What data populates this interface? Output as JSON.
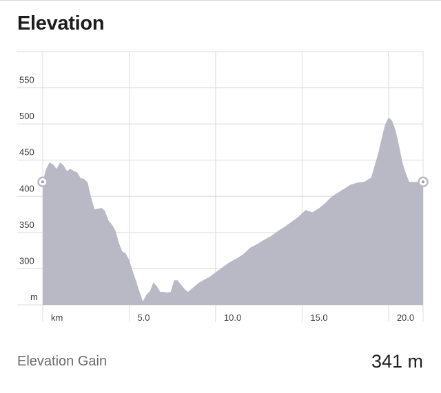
{
  "header": {
    "title": "Elevation"
  },
  "chart_data": {
    "type": "area",
    "title": "",
    "xlabel": "km",
    "ylabel": "m",
    "xlim": [
      0,
      22.0
    ],
    "ylim": [
      250,
      600
    ],
    "x_ticks": [
      {
        "value": 5.0,
        "label": "5.0"
      },
      {
        "value": 10.0,
        "label": "10.0"
      },
      {
        "value": 15.0,
        "label": "15.0"
      },
      {
        "value": 20.0,
        "label": "20.0"
      }
    ],
    "y_ticks": [
      {
        "value": 300,
        "label": "300"
      },
      {
        "value": 350,
        "label": "350"
      },
      {
        "value": 400,
        "label": "400"
      },
      {
        "value": 450,
        "label": "450"
      },
      {
        "value": 500,
        "label": "500"
      },
      {
        "value": 550,
        "label": "550"
      }
    ],
    "grid": true,
    "colors": {
      "fill": "#b9b9c6",
      "grid": "#dcdcdc",
      "axis_text": "#3a3a3a"
    },
    "markers": [
      {
        "x": 0.0,
        "y": 420
      },
      {
        "x": 22.0,
        "y": 420
      }
    ],
    "series": [
      {
        "x": [
          0.0,
          0.2,
          0.4,
          0.6,
          0.8,
          1.0,
          1.2,
          1.4,
          1.6,
          1.8,
          2.0,
          2.2,
          2.4,
          2.6,
          2.8,
          3.0,
          3.2,
          3.4,
          3.6,
          3.8,
          4.0,
          4.2,
          4.4,
          4.6,
          4.8,
          5.0,
          5.2,
          5.4,
          5.6,
          5.8,
          6.0,
          6.2,
          6.4,
          6.6,
          6.8,
          7.0,
          7.2,
          7.4,
          7.6,
          7.8,
          8.0,
          8.2,
          8.4,
          8.6,
          8.8,
          9.0,
          9.2,
          9.6,
          10.0,
          10.4,
          10.8,
          11.2,
          11.6,
          12.0,
          12.4,
          12.8,
          13.2,
          13.6,
          14.0,
          14.4,
          14.8,
          15.2,
          15.6,
          16.0,
          16.2,
          16.4,
          16.6,
          16.8,
          17.0,
          17.4,
          17.8,
          18.2,
          18.6,
          19.0,
          19.4,
          19.6,
          19.8,
          20.0,
          20.2,
          20.4,
          20.6,
          20.8,
          21.0,
          21.2,
          21.4,
          21.6,
          21.8,
          22.0
        ],
        "y": [
          420,
          438,
          447,
          444,
          438,
          447,
          443,
          435,
          438,
          435,
          433,
          425,
          424,
          419,
          398,
          382,
          383,
          384,
          380,
          367,
          361,
          353,
          336,
          324,
          321,
          312,
          297,
          283,
          268,
          255,
          264,
          269,
          281,
          276,
          268,
          268,
          267,
          268,
          284,
          284,
          278,
          272,
          268,
          272,
          276,
          280,
          283,
          288,
          295,
          302,
          309,
          314,
          320,
          329,
          334,
          340,
          345,
          352,
          358,
          365,
          372,
          381,
          378,
          384,
          388,
          392,
          397,
          401,
          404,
          410,
          416,
          419,
          420,
          426,
          459,
          480,
          499,
          509,
          505,
          492,
          471,
          447,
          432,
          420,
          420,
          420,
          420,
          420
        ]
      }
    ]
  },
  "summary": {
    "label": "Elevation Gain",
    "value": "341 m"
  }
}
